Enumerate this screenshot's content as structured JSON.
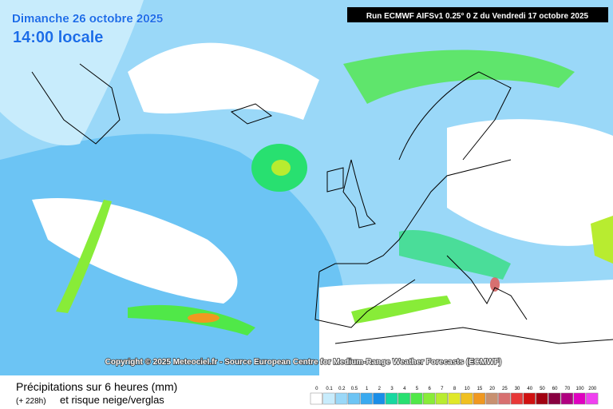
{
  "header": {
    "date": "Dimanche 26 octobre 2025",
    "time": "14:00 locale",
    "run": "Run ECMWF AIFSv1 0.25° 0 Z du Vendredi 17 octobre 2025"
  },
  "copyright": "Copyright © 2025 Meteociel.fr - Source European Centre for Medium-Range Weather Forecasts (ECMWF)",
  "footer": {
    "title": "Précipitations sur 6 heures (mm)",
    "lead": "(+ 228h)",
    "subtitle": "et risque neige/verglas"
  },
  "legend": [
    {
      "label": 0,
      "color": "#ffffff"
    },
    {
      "label": 0.1,
      "color": "#c8ecfc"
    },
    {
      "label": 0.2,
      "color": "#9ad8f8"
    },
    {
      "label": 0.5,
      "color": "#6cc4f4"
    },
    {
      "label": 1,
      "color": "#3aaaf0"
    },
    {
      "label": 2,
      "color": "#1a8ee8"
    },
    {
      "label": 3,
      "color": "#18d8a0"
    },
    {
      "label": 4,
      "color": "#28e070"
    },
    {
      "label": 5,
      "color": "#50e848"
    },
    {
      "label": 6,
      "color": "#88ec38"
    },
    {
      "label": 7,
      "color": "#b8ec30"
    },
    {
      "label": 8,
      "color": "#e0e828"
    },
    {
      "label": 10,
      "color": "#f0c020"
    },
    {
      "label": 15,
      "color": "#f09820"
    },
    {
      "label": 20,
      "color": "#c89070"
    },
    {
      "label": 25,
      "color": "#d87070"
    },
    {
      "label": 30,
      "color": "#e83838"
    },
    {
      "label": 40,
      "color": "#d01010"
    },
    {
      "label": 50,
      "color": "#a00010"
    },
    {
      "label": 60,
      "color": "#880040"
    },
    {
      "label": 70,
      "color": "#b00080"
    },
    {
      "label": 100,
      "color": "#e000c0"
    },
    {
      "label": 200,
      "color": "#f040f0"
    }
  ]
}
